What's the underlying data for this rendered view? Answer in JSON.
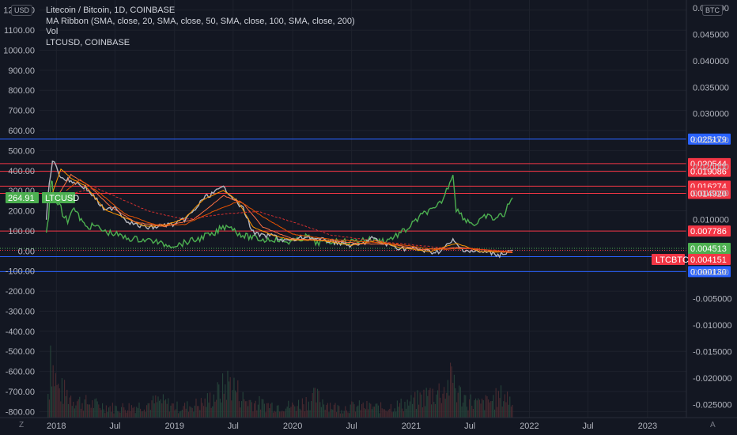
{
  "legend": {
    "title": "Litecoin / Bitcoin, 1D, COINBASE",
    "indicator": "MA Ribbon (SMA, close, 20, SMA, close, 50, SMA, close, 100, SMA, close, 200)",
    "volume": "Vol",
    "compare": "LTCUSD, COINBASE"
  },
  "buttons": {
    "left_currency": "USD",
    "right_currency": "BTC",
    "scale_mode": "Z",
    "auto_scale": "A"
  },
  "colors": {
    "background": "#131722",
    "grid": "#1e222d",
    "axis_text": "#b2b5be",
    "red_line": "#f23645",
    "blue_line": "#2962ff",
    "green_series": "#4caf50",
    "ltcbtc_price": "#b2b5be",
    "ma20": "#ff9800",
    "ma50": "#ff7043",
    "ma100": "#e65100",
    "ma200": "#d32f2f",
    "volume": "#3a4a44"
  },
  "chart_data": {
    "type": "line",
    "x_ticks": [
      "2018",
      "Jul",
      "2019",
      "Jul",
      "2020",
      "Jul",
      "2021",
      "Jul",
      "2022",
      "Jul",
      "2023"
    ],
    "left_axis": {
      "unit": "USD",
      "ticks": [
        "1200.00",
        "1100.00",
        "1000.00",
        "900.00",
        "800.00",
        "700.00",
        "600.00",
        "500.00",
        "400.00",
        "300.00",
        "200.00",
        "100.00",
        "0.00",
        "-100.00",
        "-200.00",
        "-300.00",
        "-400.00",
        "-500.00",
        "-600.00",
        "-700.00",
        "-800.00"
      ],
      "ylim": [
        -830,
        1250
      ]
    },
    "right_axis": {
      "unit": "BTC",
      "ticks": [
        "0.050000",
        "0.045000",
        "0.040000",
        "0.035000",
        "0.030000",
        "0.025000",
        "0.020000",
        "0.015000",
        "0.010000",
        "0.005000",
        "0.000000",
        "-0.005000",
        "-0.010000",
        "-0.015000",
        "-0.020000",
        "-0.025000"
      ],
      "ylim": [
        -0.0275,
        0.0515
      ]
    },
    "horizontal_levels": [
      {
        "value": 0.025179,
        "label": "0.025179",
        "color": "#2962ff"
      },
      {
        "value": 0.020544,
        "label": "0.020544",
        "color": "#f23645"
      },
      {
        "value": 0.019086,
        "label": "0.019086",
        "color": "#f23645"
      },
      {
        "value": 0.016274,
        "label": "0.016274",
        "color": "#f23645"
      },
      {
        "value": 0.01492,
        "label": "0.014920",
        "color": "#f23645"
      },
      {
        "value": 0.007786,
        "label": "0.007786",
        "color": "#f23645"
      },
      {
        "value": 0.002942,
        "label": "0.002942",
        "color": "#2962ff"
      },
      {
        "value": 0.00013,
        "label": "0.000130",
        "color": "#2962ff"
      }
    ],
    "price_tags": [
      {
        "label": "0.004513",
        "value": 0.004513,
        "color": "#4caf50"
      },
      {
        "label": "0.004151",
        "value": 0.004151,
        "color": "#f23645",
        "symbol": "LTCBTC"
      },
      {
        "label": "264.91",
        "value": 264.91,
        "color": "#4caf50",
        "symbol": "LTCUSD",
        "axis": "left"
      }
    ],
    "series": [
      {
        "name": "LTCUSD",
        "axis": "left",
        "color": "#4caf50",
        "x": [
          "2017-12-01",
          "2017-12-08",
          "2017-12-12",
          "2017-12-15",
          "2017-12-19",
          "2017-12-22",
          "2018-01-01",
          "2018-01-10",
          "2018-01-20",
          "2018-02-05",
          "2018-02-20",
          "2018-03-10",
          "2018-04-01",
          "2018-05-01",
          "2018-06-01",
          "2018-07-01",
          "2018-08-01",
          "2018-09-01",
          "2018-10-01",
          "2018-11-01",
          "2018-11-20",
          "2018-12-15",
          "2019-01-15",
          "2019-02-15",
          "2019-03-15",
          "2019-04-10",
          "2019-05-01",
          "2019-05-20",
          "2019-06-20",
          "2019-07-10",
          "2019-08-05",
          "2019-09-01",
          "2019-10-01",
          "2019-11-01",
          "2019-12-15",
          "2020-01-15",
          "2020-02-15",
          "2020-03-12",
          "2020-04-15",
          "2020-05-15",
          "2020-06-15",
          "2020-07-15",
          "2020-08-15",
          "2020-09-15",
          "2020-10-15",
          "2020-11-20",
          "2020-12-20",
          "2021-01-15",
          "2021-02-15",
          "2021-03-15",
          "2021-04-10",
          "2021-05-10",
          "2021-05-20",
          "2021-06-15",
          "2021-07-20",
          "2021-08-20",
          "2021-09-15",
          "2021-10-15",
          "2021-11-10"
        ],
        "values": [
          95,
          150,
          280,
          330,
          345,
          290,
          240,
          250,
          180,
          150,
          220,
          175,
          120,
          125,
          95,
          85,
          65,
          60,
          55,
          50,
          35,
          30,
          32,
          48,
          58,
          80,
          75,
          110,
          130,
          95,
          75,
          65,
          55,
          60,
          45,
          52,
          75,
          40,
          45,
          48,
          45,
          50,
          60,
          52,
          52,
          80,
          110,
          150,
          195,
          205,
          260,
          385,
          210,
          160,
          130,
          175,
          160,
          185,
          265
        ]
      },
      {
        "name": "LTCBTC",
        "axis": "right",
        "color": "#b2b5be",
        "x": [
          "2017-12-01",
          "2017-12-10",
          "2017-12-20",
          "2018-01-01",
          "2018-01-15",
          "2018-02-01",
          "2018-03-01",
          "2018-04-01",
          "2018-05-01",
          "2018-06-01",
          "2018-07-01",
          "2018-08-01",
          "2018-09-01",
          "2018-10-01",
          "2018-11-01",
          "2018-12-01",
          "2019-01-01",
          "2019-02-01",
          "2019-03-01",
          "2019-04-01",
          "2019-05-01",
          "2019-06-01",
          "2019-06-20",
          "2019-07-15",
          "2019-08-01",
          "2019-09-01",
          "2019-10-01",
          "2019-11-01",
          "2019-12-01",
          "2020-01-01",
          "2020-02-15",
          "2020-03-15",
          "2020-04-15",
          "2020-06-01",
          "2020-07-01",
          "2020-08-01",
          "2020-09-01",
          "2020-10-01",
          "2020-11-01",
          "2020-12-01",
          "2021-01-01",
          "2021-02-01",
          "2021-03-01",
          "2021-04-01",
          "2021-05-10",
          "2021-06-01",
          "2021-07-01",
          "2021-08-01",
          "2021-09-01",
          "2021-10-01",
          "2021-11-10"
        ],
        "values": [
          0.01,
          0.017,
          0.021,
          0.02,
          0.018,
          0.0175,
          0.017,
          0.016,
          0.014,
          0.0115,
          0.0125,
          0.01,
          0.009,
          0.0085,
          0.0085,
          0.009,
          0.009,
          0.01,
          0.0115,
          0.014,
          0.015,
          0.016,
          0.015,
          0.013,
          0.012,
          0.0075,
          0.0068,
          0.007,
          0.006,
          0.006,
          0.0068,
          0.0062,
          0.006,
          0.0055,
          0.005,
          0.0052,
          0.0065,
          0.0055,
          0.005,
          0.0045,
          0.0045,
          0.0042,
          0.0038,
          0.004,
          0.006,
          0.0045,
          0.004,
          0.0038,
          0.0037,
          0.0033,
          0.0042
        ]
      },
      {
        "name": "MA 20",
        "axis": "right",
        "color": "#ff9800",
        "x": [
          "2017-12-20",
          "2018-01-15",
          "2018-02-15",
          "2018-04-01",
          "2018-06-01",
          "2018-08-01",
          "2018-10-01",
          "2018-12-01",
          "2019-02-01",
          "2019-04-01",
          "2019-06-01",
          "2019-07-15",
          "2019-09-01",
          "2019-11-01",
          "2020-01-01",
          "2020-04-01",
          "2020-07-01",
          "2020-09-15",
          "2020-12-01",
          "2021-03-01",
          "2021-05-20",
          "2021-08-01",
          "2021-11-10"
        ],
        "values": [
          0.015,
          0.0195,
          0.0178,
          0.0163,
          0.0118,
          0.0103,
          0.0087,
          0.0088,
          0.0102,
          0.0138,
          0.0155,
          0.0135,
          0.0085,
          0.007,
          0.0061,
          0.006,
          0.0051,
          0.006,
          0.0046,
          0.0039,
          0.0055,
          0.0039,
          0.0038
        ]
      },
      {
        "name": "MA 50",
        "axis": "right",
        "color": "#ff7043",
        "x": [
          "2018-01-01",
          "2018-02-15",
          "2018-04-15",
          "2018-06-15",
          "2018-09-01",
          "2018-12-01",
          "2019-03-01",
          "2019-06-01",
          "2019-08-01",
          "2019-10-01",
          "2020-01-01",
          "2020-04-01",
          "2020-08-01",
          "2020-11-01",
          "2021-02-01",
          "2021-06-01",
          "2021-08-15",
          "2021-11-10"
        ],
        "values": [
          0.014,
          0.0185,
          0.0162,
          0.0125,
          0.0095,
          0.0086,
          0.01,
          0.0145,
          0.013,
          0.0085,
          0.0063,
          0.0061,
          0.0054,
          0.0053,
          0.0043,
          0.0047,
          0.0042,
          0.0037
        ]
      },
      {
        "name": "MA 100",
        "axis": "right",
        "color": "#e65100",
        "x": [
          "2018-02-01",
          "2018-03-15",
          "2018-05-15",
          "2018-08-01",
          "2018-11-01",
          "2019-02-01",
          "2019-05-01",
          "2019-07-20",
          "2019-10-01",
          "2020-01-01",
          "2020-05-01",
          "2020-09-01",
          "2020-12-15",
          "2021-03-15",
          "2021-07-01",
          "2021-11-10"
        ],
        "values": [
          0.0155,
          0.0175,
          0.015,
          0.011,
          0.009,
          0.009,
          0.0115,
          0.0135,
          0.0105,
          0.0072,
          0.0062,
          0.0057,
          0.0051,
          0.0043,
          0.0045,
          0.0038
        ]
      },
      {
        "name": "MA 200",
        "axis": "right",
        "color": "#d32f2f",
        "x": [
          "2018-03-01",
          "2018-05-01",
          "2018-07-15",
          "2018-10-15",
          "2019-02-01",
          "2019-06-01",
          "2019-09-15",
          "2020-01-01",
          "2020-05-01",
          "2020-09-01",
          "2021-01-01",
          "2021-05-01",
          "2021-08-01",
          "2021-11-10"
        ],
        "values": [
          0.015,
          0.016,
          0.014,
          0.0115,
          0.01,
          0.011,
          0.0115,
          0.0095,
          0.007,
          0.006,
          0.0052,
          0.0045,
          0.0043,
          0.004
        ]
      }
    ],
    "volume": {
      "x": [
        "2017-12-05",
        "2017-12-10",
        "2017-12-13",
        "2017-12-20",
        "2018-01-05",
        "2018-02-05",
        "2018-03-10",
        "2018-05-01",
        "2018-07-01",
        "2018-09-01",
        "2018-11-15",
        "2019-01-15",
        "2019-04-01",
        "2019-05-15",
        "2019-06-20",
        "2019-08-01",
        "2019-10-01",
        "2020-01-01",
        "2020-03-12",
        "2020-05-15",
        "2020-08-01",
        "2020-10-01",
        "2020-12-01",
        "2021-01-10",
        "2021-02-20",
        "2021-04-15",
        "2021-05-12",
        "2021-05-20",
        "2021-06-20",
        "2021-08-01",
        "2021-09-10",
        "2021-10-15",
        "2021-11-10"
      ],
      "values": [
        0.3,
        0.45,
        1.0,
        0.6,
        0.35,
        0.28,
        0.2,
        0.16,
        0.12,
        0.14,
        0.2,
        0.12,
        0.18,
        0.3,
        0.45,
        0.22,
        0.16,
        0.14,
        0.25,
        0.12,
        0.14,
        0.12,
        0.16,
        0.2,
        0.28,
        0.35,
        0.5,
        0.32,
        0.22,
        0.16,
        0.22,
        0.28,
        0.18
      ]
    }
  }
}
